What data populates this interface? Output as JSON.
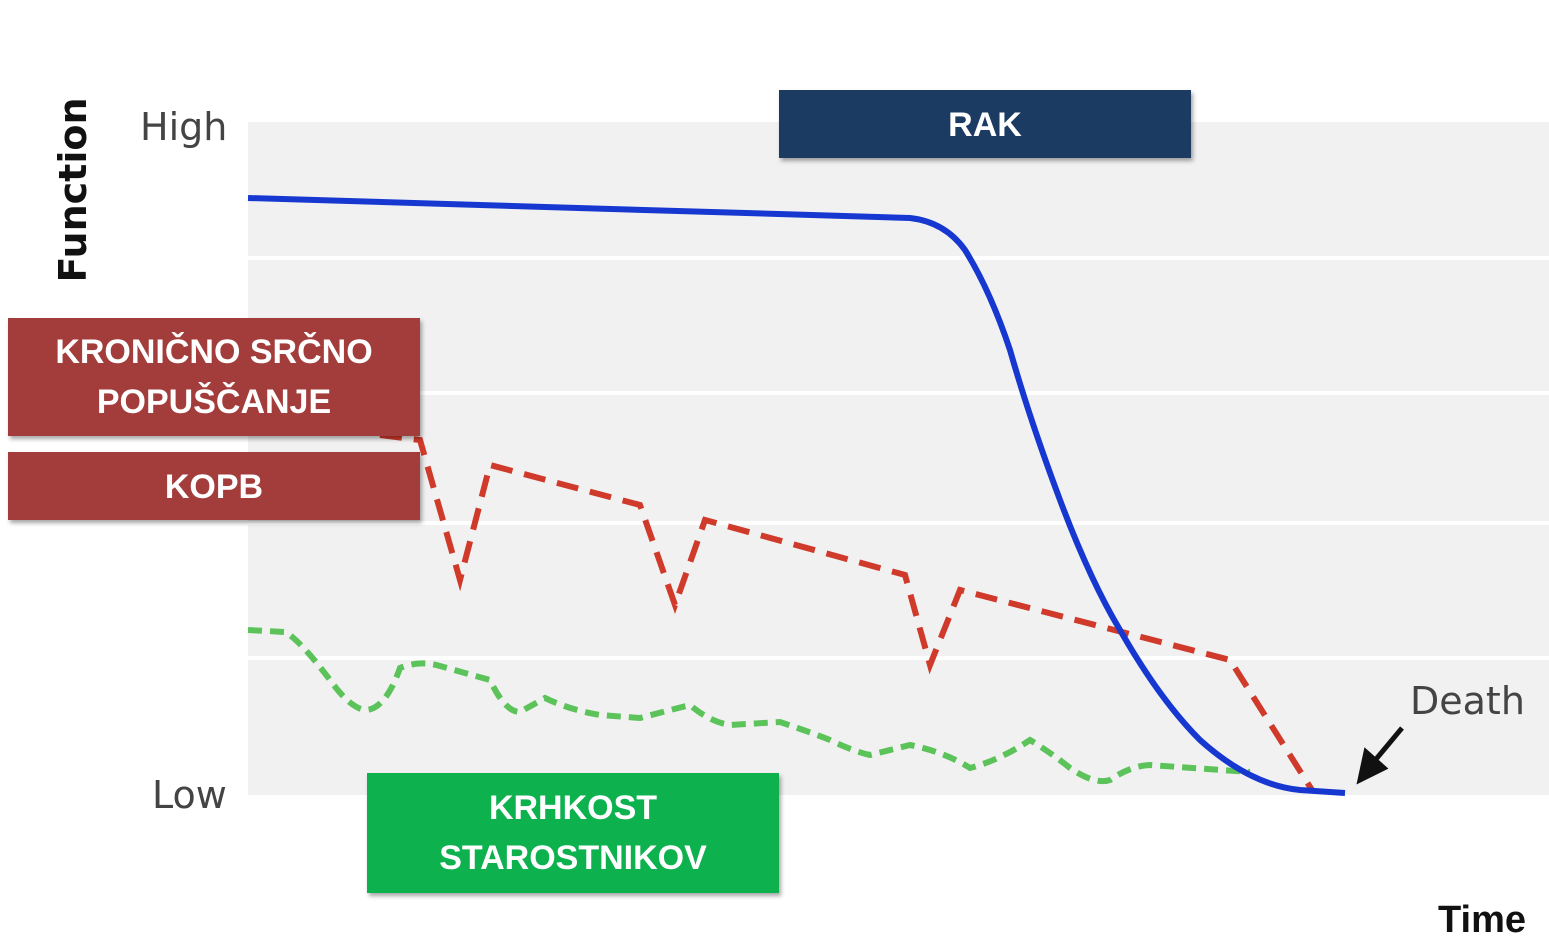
{
  "axis": {
    "y_label": "Function",
    "y_high": "High",
    "y_low": "Low",
    "x_label": "Time"
  },
  "annotations": {
    "death": "Death"
  },
  "trajectories": {
    "cancer": {
      "label": "RAK"
    },
    "organ_failure": {
      "labels": [
        "KRONIČNO SRČNO POPUŠČANJE",
        "KOPB"
      ]
    },
    "frailty": {
      "label": "KRHKOST STAROSTNIKOV"
    }
  }
}
